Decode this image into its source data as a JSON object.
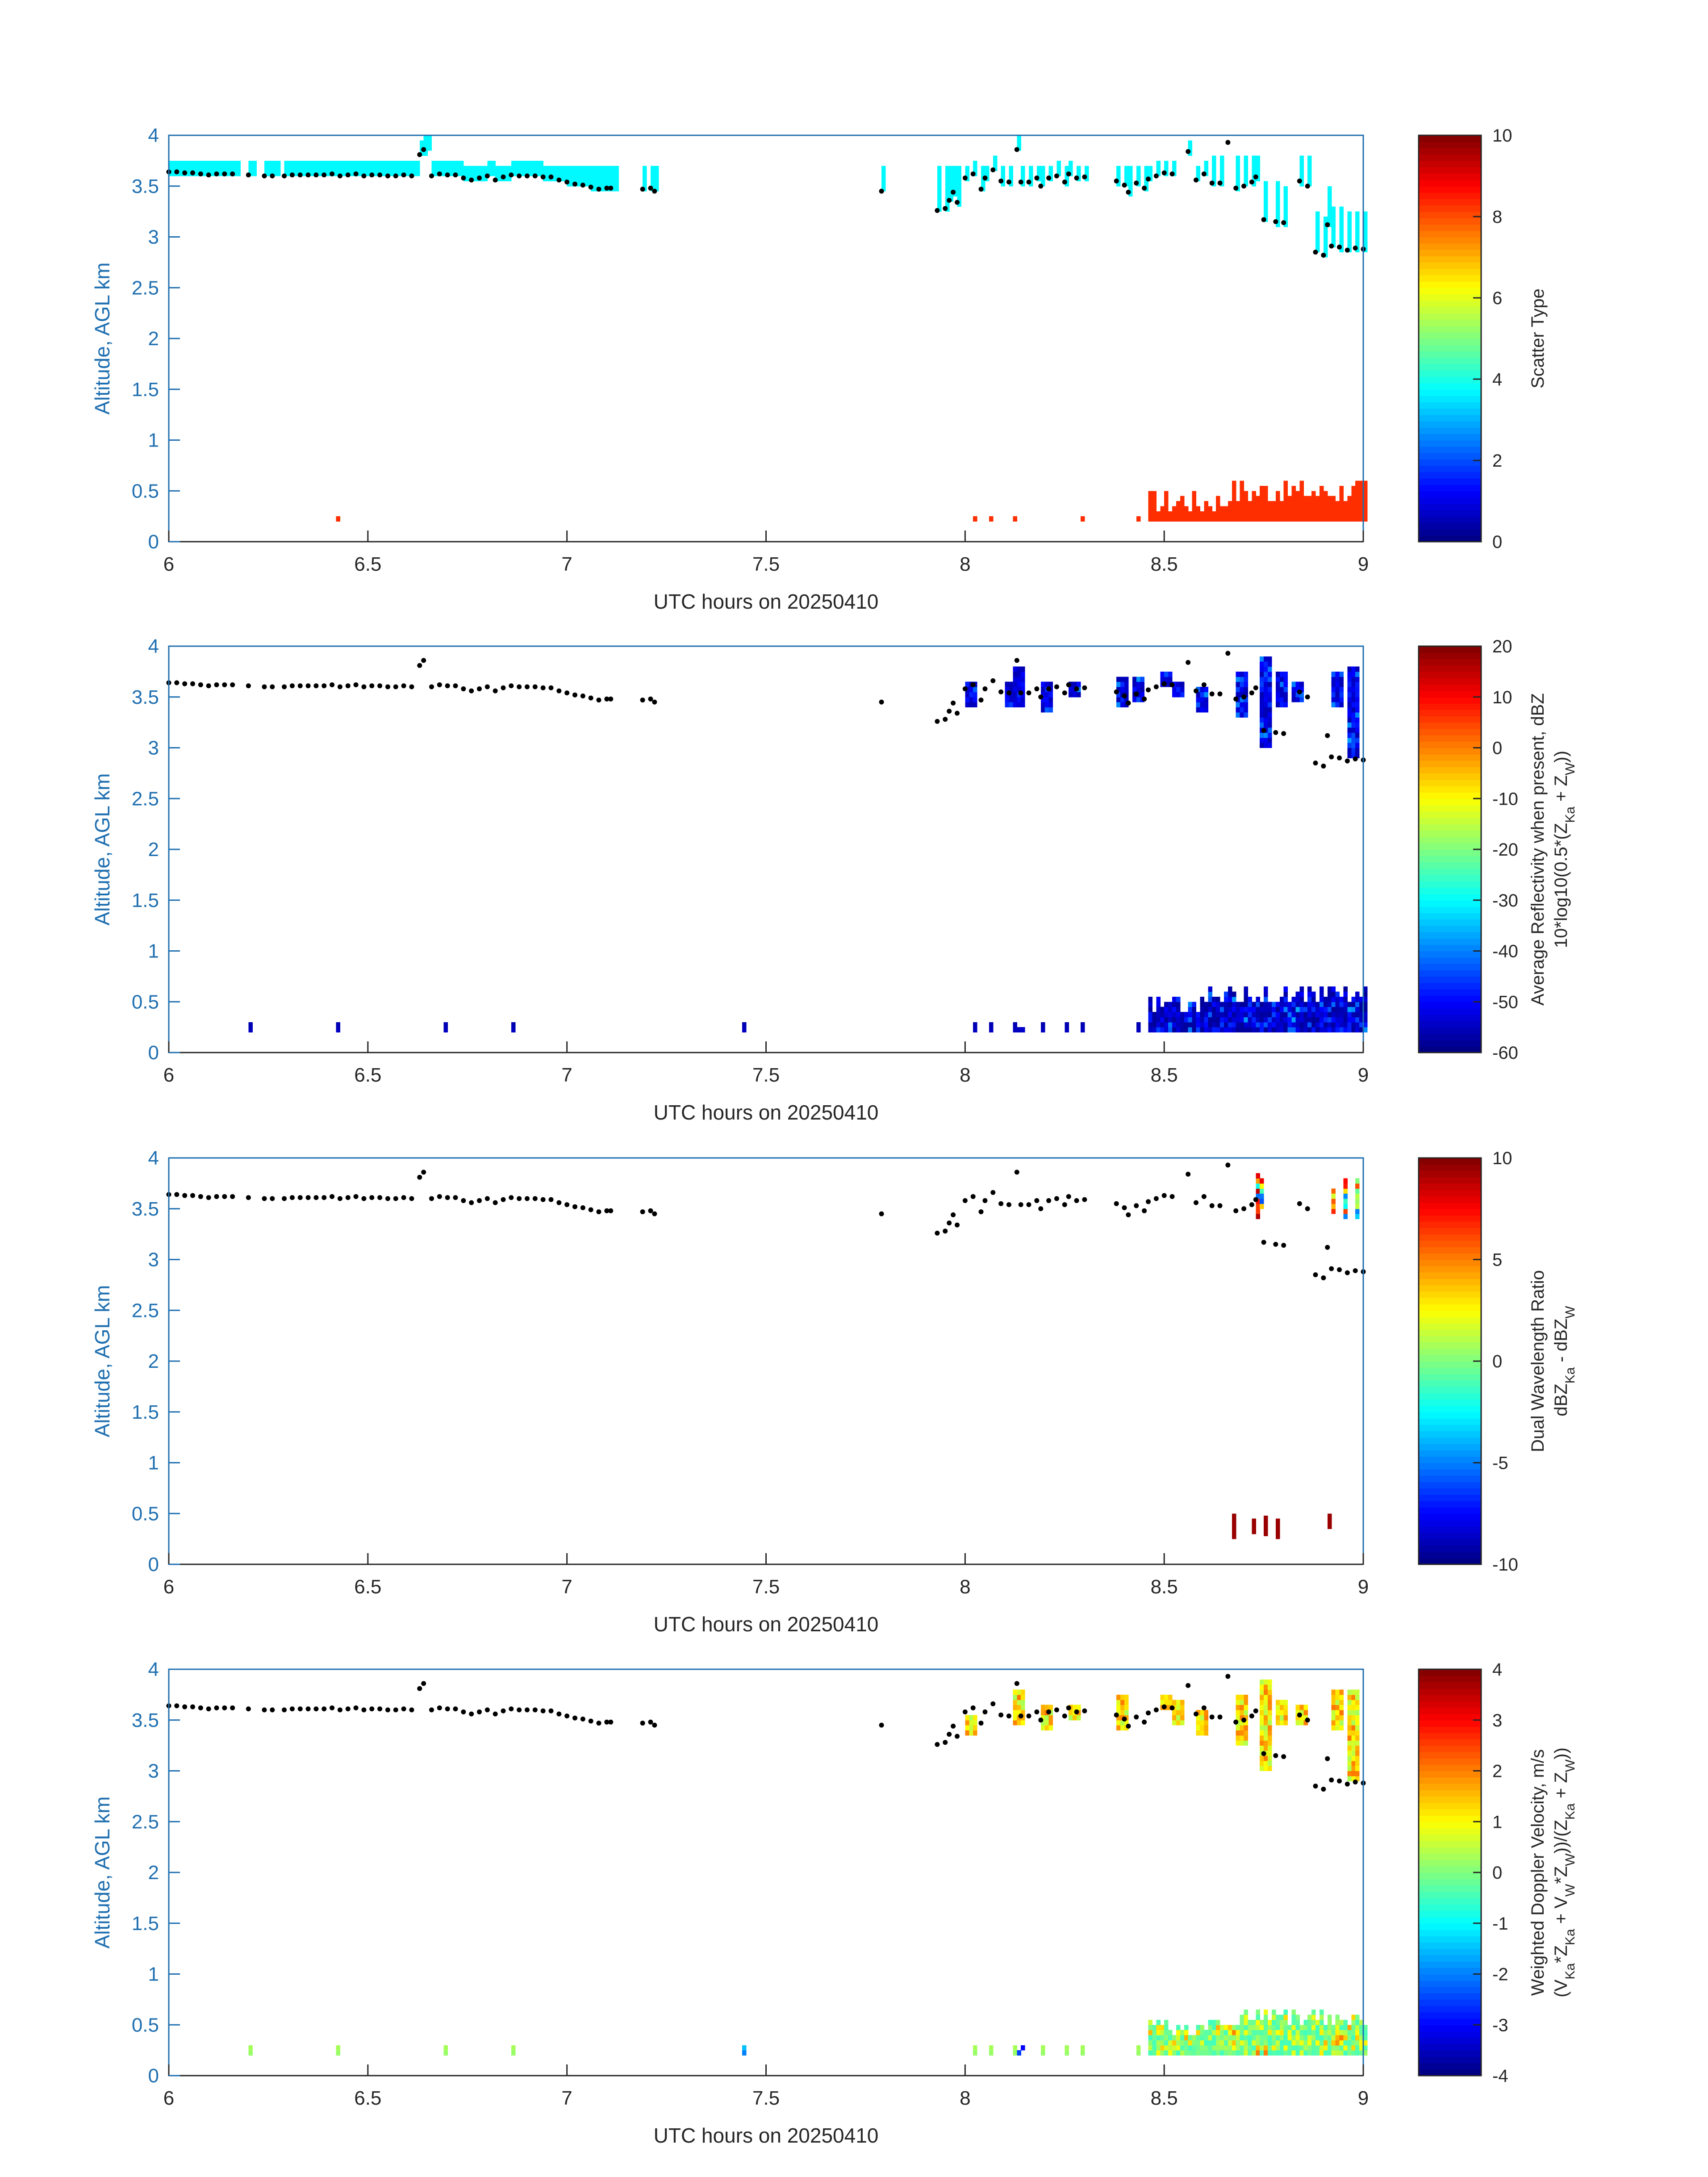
{
  "chart_data": [
    {
      "type": "heatmap",
      "xlabel": "UTC hours on 20250410",
      "ylabel": "Altitude, AGL km",
      "xlim": [
        6,
        9
      ],
      "ylim": [
        0,
        4
      ],
      "xticks": [
        "6",
        "6.5",
        "7",
        "7.5",
        "8",
        "8.5",
        "9"
      ],
      "yticks": [
        "0",
        "0.5",
        "1",
        "1.5",
        "2",
        "2.5",
        "3",
        "3.5",
        "4"
      ],
      "colorbar": {
        "label_lines": [
          "Scatter Type"
        ],
        "min": 0,
        "max": 10,
        "ticks": [
          "0",
          "2",
          "4",
          "6",
          "8",
          "10"
        ]
      },
      "layer": "scatter_type"
    },
    {
      "type": "heatmap",
      "xlabel": "UTC hours on 20250410",
      "ylabel": "Altitude, AGL km",
      "xlim": [
        6,
        9
      ],
      "ylim": [
        0,
        4
      ],
      "xticks": [
        "6",
        "6.5",
        "7",
        "7.5",
        "8",
        "8.5",
        "9"
      ],
      "yticks": [
        "0",
        "0.5",
        "1",
        "1.5",
        "2",
        "2.5",
        "3",
        "3.5",
        "4"
      ],
      "colorbar": {
        "label_lines": [
          "Average Reflectivity when present, dBZ",
          "10*log10(0.5*(Z_Ka + Z_W))"
        ],
        "min": -60,
        "max": 20,
        "ticks": [
          "-60",
          "-50",
          "-40",
          "-30",
          "-20",
          "-10",
          "0",
          "10",
          "20"
        ]
      },
      "layer": "reflectivity"
    },
    {
      "type": "heatmap",
      "xlabel": "UTC hours on 20250410",
      "ylabel": "Altitude, AGL km",
      "xlim": [
        6,
        9
      ],
      "ylim": [
        0,
        4
      ],
      "xticks": [
        "6",
        "6.5",
        "7",
        "7.5",
        "8",
        "8.5",
        "9"
      ],
      "yticks": [
        "0",
        "0.5",
        "1",
        "1.5",
        "2",
        "2.5",
        "3",
        "3.5",
        "4"
      ],
      "colorbar": {
        "label_lines": [
          "Dual Wavelength Ratio",
          "dBZ_Ka - dBZ_W"
        ],
        "min": -10,
        "max": 10,
        "ticks": [
          "-10",
          "-5",
          "0",
          "5",
          "10"
        ]
      },
      "layer": "dwr"
    },
    {
      "type": "heatmap",
      "xlabel": "UTC hours on 20250410",
      "ylabel": "Altitude, AGL km",
      "xlim": [
        6,
        9
      ],
      "ylim": [
        0,
        4
      ],
      "xticks": [
        "6",
        "6.5",
        "7",
        "7.5",
        "8",
        "8.5",
        "9"
      ],
      "yticks": [
        "0",
        "0.5",
        "1",
        "1.5",
        "2",
        "2.5",
        "3",
        "3.5",
        "4"
      ],
      "colorbar": {
        "label_lines": [
          "Weighted Doppler Velocity, m/s",
          "(V_Ka*Z_Ka + V_W*Z_W))/(Z_Ka + Z_W))"
        ],
        "min": -4,
        "max": 4,
        "ticks": [
          "-4",
          "-3",
          "-2",
          "-1",
          "0",
          "1",
          "2",
          "3",
          "4"
        ]
      },
      "layer": "doppler"
    }
  ],
  "cloud_base_points": [
    [
      6.0,
      3.64
    ],
    [
      6.02,
      3.64
    ],
    [
      6.04,
      3.63
    ],
    [
      6.06,
      3.63
    ],
    [
      6.08,
      3.62
    ],
    [
      6.1,
      3.61
    ],
    [
      6.12,
      3.62
    ],
    [
      6.14,
      3.62
    ],
    [
      6.16,
      3.62
    ],
    [
      6.2,
      3.61
    ],
    [
      6.24,
      3.6
    ],
    [
      6.26,
      3.6
    ],
    [
      6.29,
      3.6
    ],
    [
      6.31,
      3.61
    ],
    [
      6.33,
      3.61
    ],
    [
      6.35,
      3.61
    ],
    [
      6.37,
      3.61
    ],
    [
      6.39,
      3.61
    ],
    [
      6.41,
      3.62
    ],
    [
      6.43,
      3.6
    ],
    [
      6.45,
      3.61
    ],
    [
      6.47,
      3.62
    ],
    [
      6.49,
      3.6
    ],
    [
      6.51,
      3.61
    ],
    [
      6.53,
      3.61
    ],
    [
      6.55,
      3.6
    ],
    [
      6.57,
      3.6
    ],
    [
      6.59,
      3.61
    ],
    [
      6.61,
      3.6
    ],
    [
      6.63,
      3.81
    ],
    [
      6.64,
      3.86
    ],
    [
      6.66,
      3.6
    ],
    [
      6.68,
      3.62
    ],
    [
      6.7,
      3.61
    ],
    [
      6.72,
      3.61
    ],
    [
      6.74,
      3.58
    ],
    [
      6.76,
      3.56
    ],
    [
      6.78,
      3.58
    ],
    [
      6.8,
      3.6
    ],
    [
      6.82,
      3.56
    ],
    [
      6.84,
      3.59
    ],
    [
      6.86,
      3.61
    ],
    [
      6.88,
      3.6
    ],
    [
      6.9,
      3.6
    ],
    [
      6.92,
      3.6
    ],
    [
      6.94,
      3.59
    ],
    [
      6.96,
      3.59
    ],
    [
      6.98,
      3.56
    ],
    [
      7.0,
      3.54
    ],
    [
      7.02,
      3.52
    ],
    [
      7.04,
      3.51
    ],
    [
      7.06,
      3.49
    ],
    [
      7.08,
      3.47
    ],
    [
      7.1,
      3.48
    ],
    [
      7.11,
      3.48
    ],
    [
      7.19,
      3.47
    ],
    [
      7.21,
      3.48
    ],
    [
      7.22,
      3.45
    ],
    [
      7.79,
      3.45
    ],
    [
      7.93,
      3.26
    ],
    [
      7.95,
      3.28
    ],
    [
      7.96,
      3.36
    ],
    [
      7.97,
      3.44
    ],
    [
      7.98,
      3.34
    ],
    [
      8.0,
      3.58
    ],
    [
      8.02,
      3.62
    ],
    [
      8.04,
      3.47
    ],
    [
      8.05,
      3.58
    ],
    [
      8.07,
      3.66
    ],
    [
      8.09,
      3.55
    ],
    [
      8.11,
      3.54
    ],
    [
      8.13,
      3.86
    ],
    [
      8.14,
      3.54
    ],
    [
      8.16,
      3.54
    ],
    [
      8.18,
      3.58
    ],
    [
      8.19,
      3.5
    ],
    [
      8.21,
      3.58
    ],
    [
      8.23,
      3.6
    ],
    [
      8.25,
      3.54
    ],
    [
      8.26,
      3.62
    ],
    [
      8.28,
      3.58
    ],
    [
      8.3,
      3.59
    ],
    [
      8.38,
      3.55
    ],
    [
      8.4,
      3.51
    ],
    [
      8.41,
      3.44
    ],
    [
      8.43,
      3.53
    ],
    [
      8.45,
      3.48
    ],
    [
      8.46,
      3.57
    ],
    [
      8.48,
      3.6
    ],
    [
      8.5,
      3.63
    ],
    [
      8.52,
      3.62
    ],
    [
      8.56,
      3.84
    ],
    [
      8.58,
      3.56
    ],
    [
      8.6,
      3.62
    ],
    [
      8.62,
      3.53
    ],
    [
      8.64,
      3.53
    ],
    [
      8.66,
      3.93
    ],
    [
      8.68,
      3.48
    ],
    [
      8.7,
      3.5
    ],
    [
      8.72,
      3.54
    ],
    [
      8.73,
      3.59
    ],
    [
      8.75,
      3.17
    ],
    [
      8.78,
      3.15
    ],
    [
      8.8,
      3.14
    ],
    [
      8.84,
      3.55
    ],
    [
      8.86,
      3.5
    ],
    [
      8.88,
      2.85
    ],
    [
      8.9,
      2.82
    ],
    [
      8.91,
      3.12
    ],
    [
      8.92,
      2.91
    ],
    [
      8.94,
      2.9
    ],
    [
      8.96,
      2.87
    ],
    [
      8.98,
      2.89
    ],
    [
      9.0,
      2.88
    ]
  ]
}
